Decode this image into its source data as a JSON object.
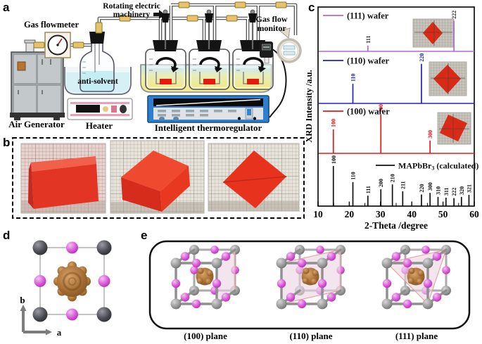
{
  "figure": {
    "panel_labels": {
      "a": "a",
      "b": "b",
      "c": "c",
      "d": "d",
      "e": "e"
    }
  },
  "panel_a": {
    "gas_flowmeter": "Gas flowmeter",
    "rotating_line1": "Rotating electric",
    "rotating_line2": "machinery",
    "gas_flow_monitor_line1": "Gas flow",
    "gas_flow_monitor_line2": "monitor",
    "anti_solvent": "anti-solvent",
    "air_generator": "Air Generator",
    "heater": "Heater",
    "thermoregulator": "Intelligent thermoregulator"
  },
  "chart_data": {
    "type": "line",
    "title": "",
    "xlabel": "2-Theta /degree",
    "ylabel": "XRD Intensity /a.u.",
    "xlim": [
      10,
      60
    ],
    "xticks": [
      10,
      20,
      30,
      40,
      50,
      60
    ],
    "minor_tick_step": 5,
    "grid": false,
    "legend_position": "top-left of each band; calculated legend centered",
    "series": [
      {
        "name": "(111) wafer",
        "color": "#b06cc8",
        "label_color": "#2a2a2a",
        "peaks": [
          {
            "two_theta": 25.95,
            "hkl": "111",
            "rel_height": 0.17
          },
          {
            "two_theta": 53.5,
            "hkl": "222",
            "rel_height": 0.88
          }
        ]
      },
      {
        "name": "(110) wafer",
        "color": "#2020d0",
        "label_color": "#1a1ab8",
        "peaks": [
          {
            "two_theta": 21.15,
            "hkl": "110",
            "rel_height": 0.48
          },
          {
            "two_theta": 43.1,
            "hkl": "220",
            "rel_height": 0.97
          }
        ]
      },
      {
        "name": "(100) wafer",
        "color": "#e31b1b",
        "label_color": "#d81515",
        "peaks": [
          {
            "two_theta": 14.9,
            "hkl": "100",
            "rel_height": 0.62
          },
          {
            "two_theta": 30.1,
            "hkl": "200",
            "rel_height": 1.0
          },
          {
            "two_theta": 45.85,
            "hkl": "300",
            "rel_height": 0.33
          }
        ]
      },
      {
        "name": "MAPbBr3 (calculated)",
        "color": "#101010",
        "label_color": "#101010",
        "legend": {
          "prefix": "MAPbBr",
          "sub": "3",
          "suffix": " (calculated)"
        },
        "peaks": [
          {
            "two_theta": 14.9,
            "hkl": "100",
            "rel_height": 1.0
          },
          {
            "two_theta": 21.15,
            "hkl": "110",
            "rel_height": 0.6
          },
          {
            "two_theta": 25.95,
            "hkl": "111",
            "rel_height": 0.26
          },
          {
            "two_theta": 30.1,
            "hkl": "200",
            "rel_height": 0.42
          },
          {
            "two_theta": 33.8,
            "hkl": "210",
            "rel_height": 0.54
          },
          {
            "two_theta": 37.1,
            "hkl": "211",
            "rel_height": 0.37
          },
          {
            "two_theta": 43.1,
            "hkl": "220",
            "rel_height": 0.29
          },
          {
            "two_theta": 45.85,
            "hkl": "300",
            "rel_height": 0.33
          },
          {
            "two_theta": 48.4,
            "hkl": "310",
            "rel_height": 0.23
          },
          {
            "two_theta": 50.95,
            "hkl": "311",
            "rel_height": 0.21
          },
          {
            "two_theta": 53.5,
            "hkl": "222",
            "rel_height": 0.2
          },
          {
            "two_theta": 55.9,
            "hkl": "320",
            "rel_height": 0.23
          },
          {
            "two_theta": 58.3,
            "hkl": "321",
            "rel_height": 0.28
          }
        ]
      }
    ]
  },
  "panel_d": {
    "axis_a": "a",
    "axis_b": "b"
  },
  "panel_e": {
    "plane_labels": [
      "(100) plane",
      "(110) plane",
      "(111) plane"
    ]
  }
}
